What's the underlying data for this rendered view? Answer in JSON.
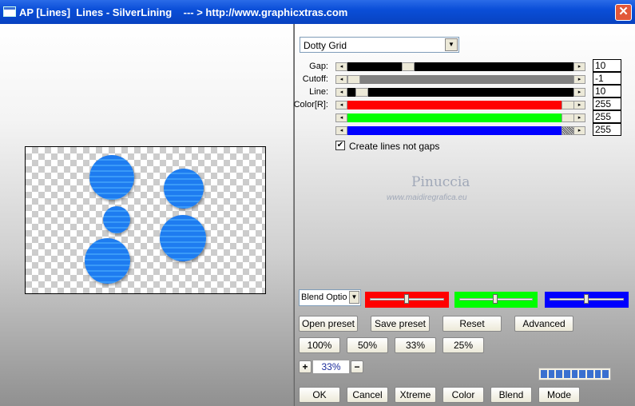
{
  "window": {
    "title": "AP [Lines]  Lines - SilverLining    --- > http://www.graphicxtras.com",
    "close_icon": "close-icon"
  },
  "preset_select": {
    "value": "Dotty Grid"
  },
  "sliders": [
    {
      "label": "Gap:",
      "value": "10",
      "color": "#000000"
    },
    {
      "label": "Cutoff:",
      "value": "-1",
      "color": "#808080"
    },
    {
      "label": "Line:",
      "value": "10",
      "color": "#000000"
    },
    {
      "label": "Color[R]:",
      "value": "255",
      "color": "#ff0000"
    },
    {
      "label": "",
      "value": "255",
      "color": "#00ff00"
    },
    {
      "label": "",
      "value": "255",
      "color": "#0000ff"
    }
  ],
  "checkbox": {
    "label": "Create lines not gaps",
    "checked": true
  },
  "watermark": {
    "name": "Pinuccia",
    "url": "www.maidiregrafica.eu"
  },
  "blend_select": {
    "value": "Blend Optio"
  },
  "color_sliders": [
    {
      "color": "#ff0000"
    },
    {
      "color": "#00ff00"
    },
    {
      "color": "#0000ff"
    }
  ],
  "buttons": {
    "open_preset": "Open preset",
    "save_preset": "Save preset",
    "reset": "Reset",
    "advanced": "Advanced",
    "z100": "100%",
    "z50": "50%",
    "z33": "33%",
    "z25": "25%",
    "plus": "+",
    "minus": "−",
    "ok": "OK",
    "cancel": "Cancel",
    "xtreme": "Xtreme",
    "color": "Color",
    "blend": "Blend",
    "mode": "Mode"
  },
  "zoom": {
    "value": "33%"
  },
  "progress": {
    "segments": 9,
    "filled": 9
  }
}
